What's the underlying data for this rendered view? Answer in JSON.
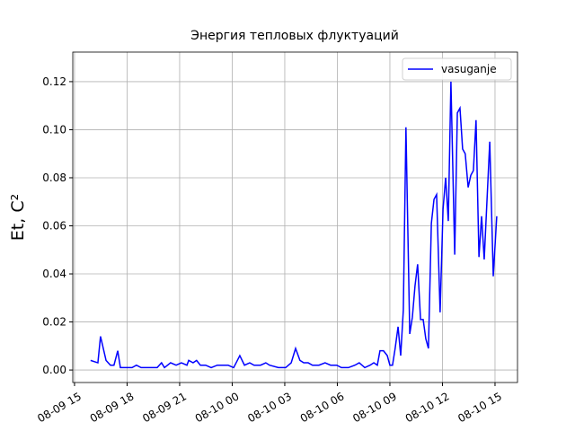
{
  "chart_data": {
    "type": "line",
    "title": "Энергия тепловых флуктуаций",
    "y_label": "Et, C²",
    "grid": true,
    "legend_position": "upper right",
    "x": [
      "08-09 15:55",
      "08-09 16:20",
      "08-09 16:29",
      "08-09 16:48",
      "08-09 17:03",
      "08-09 17:15",
      "08-09 17:28",
      "08-09 17:37",
      "08-09 17:55",
      "08-09 18:17",
      "08-09 18:32",
      "08-09 18:48",
      "08-09 19:12",
      "08-09 19:43",
      "08-09 19:58",
      "08-09 20:08",
      "08-09 20:29",
      "08-09 20:48",
      "08-09 21:06",
      "08-09 21:25",
      "08-09 21:31",
      "08-09 21:46",
      "08-09 21:58",
      "08-09 22:11",
      "08-09 22:29",
      "08-09 22:48",
      "08-09 23:09",
      "08-09 23:28",
      "08-09 23:46",
      "08-10 00:05",
      "08-10 00:26",
      "08-10 00:42",
      "08-10 01:00",
      "08-10 01:15",
      "08-10 01:37",
      "08-10 01:55",
      "08-10 02:08",
      "08-10 02:38",
      "08-10 03:03",
      "08-10 03:22",
      "08-10 03:37",
      "08-10 03:52",
      "08-10 04:05",
      "08-10 04:20",
      "08-10 04:35",
      "08-10 04:57",
      "08-10 05:18",
      "08-10 05:37",
      "08-10 05:58",
      "08-10 06:14",
      "08-10 06:38",
      "08-10 07:00",
      "08-10 07:15",
      "08-10 07:34",
      "08-10 07:52",
      "08-10 08:05",
      "08-10 08:17",
      "08-10 08:26",
      "08-10 08:38",
      "08-10 08:51",
      "08-10 09:00",
      "08-10 09:09",
      "08-10 09:18",
      "08-10 09:28",
      "08-10 09:37",
      "08-10 09:46",
      "08-10 09:55",
      "08-10 10:08",
      "08-10 10:17",
      "08-10 10:26",
      "08-10 10:35",
      "08-10 10:45",
      "08-10 10:54",
      "08-10 11:03",
      "08-10 11:12",
      "08-10 11:22",
      "08-10 11:31",
      "08-10 11:40",
      "08-10 11:52",
      "08-10 12:02",
      "08-10 12:11",
      "08-10 12:20",
      "08-10 12:29",
      "08-10 12:42",
      "08-10 12:51",
      "08-10 13:00",
      "08-10 13:09",
      "08-10 13:18",
      "08-10 13:28",
      "08-10 13:37",
      "08-10 13:46",
      "08-10 13:55",
      "08-10 14:05",
      "08-10 14:14",
      "08-10 14:23",
      "08-10 14:42",
      "08-10 14:54",
      "08-10 15:06"
    ],
    "series": [
      {
        "name": "vasuganje",
        "color": "#0000ff",
        "values": [
          0.004,
          0.003,
          0.014,
          0.004,
          0.002,
          0.002,
          0.008,
          0.001,
          0.001,
          0.001,
          0.002,
          0.001,
          0.001,
          0.001,
          0.003,
          0.001,
          0.003,
          0.002,
          0.003,
          0.002,
          0.004,
          0.003,
          0.004,
          0.002,
          0.002,
          0.001,
          0.002,
          0.002,
          0.002,
          0.001,
          0.006,
          0.002,
          0.003,
          0.002,
          0.002,
          0.003,
          0.002,
          0.001,
          0.001,
          0.003,
          0.009,
          0.004,
          0.003,
          0.003,
          0.002,
          0.002,
          0.003,
          0.002,
          0.002,
          0.001,
          0.001,
          0.002,
          0.003,
          0.001,
          0.002,
          0.003,
          0.002,
          0.008,
          0.008,
          0.006,
          0.002,
          0.002,
          0.009,
          0.018,
          0.006,
          0.025,
          0.101,
          0.015,
          0.022,
          0.035,
          0.044,
          0.021,
          0.021,
          0.013,
          0.009,
          0.061,
          0.071,
          0.073,
          0.024,
          0.067,
          0.08,
          0.062,
          0.12,
          0.048,
          0.107,
          0.109,
          0.092,
          0.09,
          0.076,
          0.081,
          0.083,
          0.104,
          0.047,
          0.064,
          0.046,
          0.095,
          0.039,
          0.064
        ]
      }
    ],
    "xlim": [
      "08-09 14:54",
      "08-10 16:17"
    ],
    "xticks": [
      "08-09 15",
      "08-09 18",
      "08-09 21",
      "08-10 00",
      "08-10 03",
      "08-10 06",
      "08-10 09",
      "08-10 12",
      "08-10 15"
    ],
    "ylim": [
      -0.0052,
      0.1323
    ],
    "yticks": [
      {
        "value": 0,
        "label": "0.00"
      },
      0.02,
      0.04,
      0.06,
      0.08,
      {
        "value": 0.1,
        "label": "0.10"
      },
      0.12
    ]
  }
}
